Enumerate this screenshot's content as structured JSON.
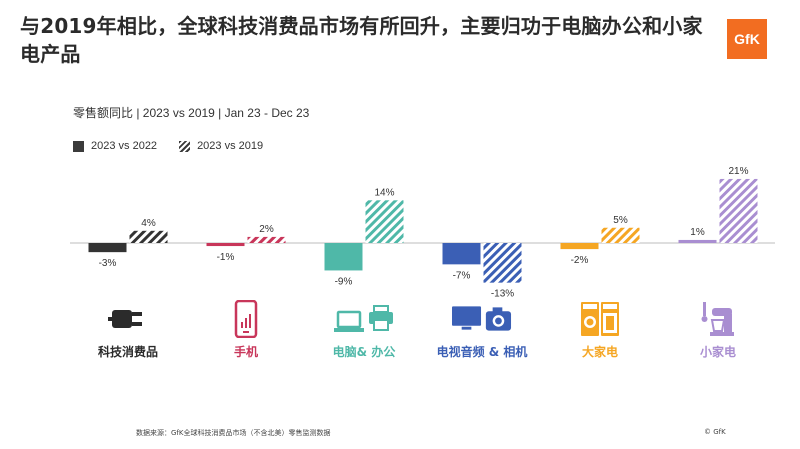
{
  "title": "与2019年相比，全球科技消费品市场有所回升，主要归功于电脑办公和小家电产品",
  "logo_text": "GfK",
  "subtitle": "零售额同比 | 2023 vs 2019 | Jan 23 - Dec 23",
  "legend": {
    "series_a": "2023 vs 2022",
    "series_b": "2023 vs 2019"
  },
  "footer": "数据来源：GfK全球科技消费品市场（不含北美）零售监测数据",
  "copyright": "© GfK",
  "chart_data": {
    "type": "bar",
    "categories": [
      "科技消费品",
      "手机",
      "电脑& 办公",
      "电视音频 & 相机",
      "大家电",
      "小家电"
    ],
    "category_colors": [
      "#333333",
      "#c8365a",
      "#4fb8a8",
      "#3b5fb5",
      "#f5a623",
      "#a98ed1"
    ],
    "series": [
      {
        "name": "2023 vs 2022",
        "style": "solid",
        "values": [
          -3,
          -1,
          -9,
          -7,
          -2,
          1
        ]
      },
      {
        "name": "2023 vs 2019",
        "style": "hatched",
        "values": [
          4,
          2,
          14,
          -13,
          5,
          21
        ]
      }
    ],
    "value_labels": [
      [
        "-3%",
        "-1%",
        "-9%",
        "-7%",
        "-2%",
        "1%"
      ],
      [
        "4%",
        "2%",
        "14%",
        "-13%",
        "5%",
        "21%"
      ]
    ],
    "icons": [
      "plug-icon",
      "phone-icon",
      "laptop-printer-icon",
      "tv-camera-icon",
      "appliance-icon",
      "mixer-icon"
    ],
    "ylim": [
      -13,
      21
    ],
    "grid": false
  }
}
